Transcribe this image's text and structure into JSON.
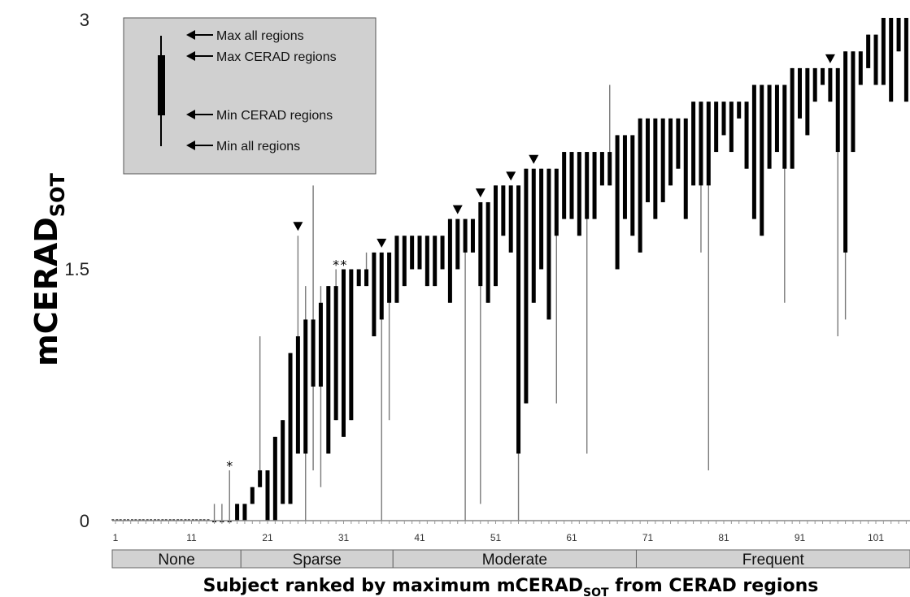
{
  "chart_data": {
    "type": "range-bar",
    "ylabel": "mCERAD",
    "ylabel_sub": "SOT",
    "xlabel": "Subject ranked by maximum mCERAD",
    "xlabel_sub": "SOT",
    "xlabel_tail": " from CERAD regions",
    "y_ticks": [
      "0",
      "1.5",
      "3"
    ],
    "ylim": [
      0,
      3
    ],
    "x_ticks": [
      "1",
      "11",
      "21",
      "31",
      "41",
      "51",
      "61",
      "71",
      "81",
      "91",
      "101"
    ],
    "xlim": [
      1,
      108
    ],
    "legend": {
      "max_all": "Max all regions",
      "max_cerad": "Max CERAD regions",
      "min_cerad": "Min CERAD regions",
      "min_all": "Min all regions"
    },
    "categories": [
      {
        "label": "None",
        "start": 1,
        "end": 17
      },
      {
        "label": "Sparse",
        "start": 18,
        "end": 37
      },
      {
        "label": "Moderate",
        "start": 38,
        "end": 69
      },
      {
        "label": "Frequent",
        "start": 70,
        "end": 108
      }
    ],
    "triangle_subjects": [
      25,
      36,
      46,
      49,
      53,
      56,
      95
    ],
    "star_subjects": [
      16,
      30,
      31
    ],
    "subjects": [
      [
        0,
        0,
        0,
        0
      ],
      [
        0,
        0,
        0,
        0
      ],
      [
        0,
        0,
        0,
        0
      ],
      [
        0,
        0,
        0,
        0
      ],
      [
        0,
        0,
        0,
        0
      ],
      [
        0,
        0,
        0,
        0
      ],
      [
        0,
        0,
        0,
        0
      ],
      [
        0,
        0,
        0,
        0
      ],
      [
        0,
        0,
        0,
        0
      ],
      [
        0,
        0,
        0,
        0
      ],
      [
        0,
        0,
        0,
        0
      ],
      [
        0,
        0,
        0,
        0
      ],
      [
        0,
        0,
        0,
        0
      ],
      [
        0,
        0,
        0,
        0.1
      ],
      [
        0,
        0,
        0,
        0.1
      ],
      [
        0,
        0,
        0,
        0.3
      ],
      [
        0,
        0,
        0.1,
        0.1
      ],
      [
        0,
        0,
        0.1,
        0.1
      ],
      [
        0.1,
        0.1,
        0.2,
        0.2
      ],
      [
        0.2,
        0.2,
        0.3,
        1.1
      ],
      [
        0,
        0,
        0.3,
        0.3
      ],
      [
        0,
        0,
        0.5,
        0.5
      ],
      [
        0.1,
        0.1,
        0.6,
        0.6
      ],
      [
        0.1,
        0.1,
        1.0,
        1.0
      ],
      [
        0.4,
        0.4,
        1.1,
        1.7
      ],
      [
        0,
        0.4,
        1.2,
        1.4
      ],
      [
        0.3,
        0.8,
        1.2,
        2.0
      ],
      [
        0.2,
        0.8,
        1.3,
        1.4
      ],
      [
        0.4,
        0.4,
        1.4,
        1.4
      ],
      [
        0.6,
        0.6,
        1.4,
        1.5
      ],
      [
        0.5,
        0.5,
        1.5,
        1.5
      ],
      [
        0.6,
        0.6,
        1.5,
        1.5
      ],
      [
        1.4,
        1.4,
        1.5,
        1.5
      ],
      [
        1.4,
        1.4,
        1.5,
        1.6
      ],
      [
        1.1,
        1.1,
        1.6,
        1.6
      ],
      [
        0,
        1.2,
        1.6,
        1.6
      ],
      [
        0.6,
        1.3,
        1.6,
        1.6
      ],
      [
        1.3,
        1.3,
        1.7,
        1.7
      ],
      [
        1.4,
        1.4,
        1.7,
        1.7
      ],
      [
        1.5,
        1.5,
        1.7,
        1.7
      ],
      [
        1.5,
        1.5,
        1.7,
        1.7
      ],
      [
        1.4,
        1.4,
        1.7,
        1.7
      ],
      [
        1.4,
        1.4,
        1.7,
        1.7
      ],
      [
        1.5,
        1.5,
        1.7,
        1.7
      ],
      [
        1.3,
        1.3,
        1.8,
        1.8
      ],
      [
        1.5,
        1.5,
        1.8,
        1.8
      ],
      [
        0,
        1.6,
        1.8,
        1.8
      ],
      [
        1.6,
        1.6,
        1.8,
        1.8
      ],
      [
        0.1,
        1.4,
        1.9,
        1.9
      ],
      [
        1.3,
        1.3,
        1.9,
        1.9
      ],
      [
        1.4,
        1.4,
        2.0,
        2.0
      ],
      [
        1.7,
        1.7,
        2.0,
        2.0
      ],
      [
        1.6,
        1.6,
        2.0,
        2.0
      ],
      [
        0,
        0.4,
        2.0,
        2.0
      ],
      [
        0.7,
        0.7,
        2.1,
        2.1
      ],
      [
        1.3,
        1.3,
        2.1,
        2.1
      ],
      [
        1.5,
        1.5,
        2.1,
        2.1
      ],
      [
        1.2,
        1.2,
        2.1,
        2.1
      ],
      [
        0.7,
        1.7,
        2.1,
        2.1
      ],
      [
        1.8,
        1.8,
        2.2,
        2.2
      ],
      [
        1.8,
        1.8,
        2.2,
        2.2
      ],
      [
        1.7,
        1.7,
        2.2,
        2.2
      ],
      [
        0.4,
        1.8,
        2.2,
        2.2
      ],
      [
        1.8,
        1.8,
        2.2,
        2.2
      ],
      [
        2.0,
        2.0,
        2.2,
        2.2
      ],
      [
        2.0,
        2.0,
        2.2,
        2.6
      ],
      [
        1.5,
        1.5,
        2.3,
        2.3
      ],
      [
        1.8,
        1.8,
        2.3,
        2.3
      ],
      [
        1.7,
        1.7,
        2.3,
        2.3
      ],
      [
        1.6,
        1.6,
        2.4,
        2.4
      ],
      [
        1.9,
        1.9,
        2.4,
        2.4
      ],
      [
        1.8,
        1.8,
        2.4,
        2.4
      ],
      [
        1.9,
        1.9,
        2.4,
        2.4
      ],
      [
        2.0,
        2.0,
        2.4,
        2.4
      ],
      [
        2.1,
        2.1,
        2.4,
        2.4
      ],
      [
        1.8,
        1.8,
        2.4,
        2.4
      ],
      [
        2.0,
        2.0,
        2.5,
        2.5
      ],
      [
        1.6,
        2.0,
        2.5,
        2.5
      ],
      [
        0.3,
        2.0,
        2.5,
        2.5
      ],
      [
        2.2,
        2.2,
        2.5,
        2.5
      ],
      [
        2.3,
        2.3,
        2.5,
        2.5
      ],
      [
        2.2,
        2.2,
        2.5,
        2.5
      ],
      [
        2.4,
        2.4,
        2.5,
        2.5
      ],
      [
        2.1,
        2.1,
        2.5,
        2.5
      ],
      [
        1.8,
        1.8,
        2.6,
        2.6
      ],
      [
        1.7,
        1.7,
        2.6,
        2.6
      ],
      [
        2.1,
        2.1,
        2.6,
        2.6
      ],
      [
        2.2,
        2.2,
        2.6,
        2.6
      ],
      [
        1.3,
        2.1,
        2.6,
        2.6
      ],
      [
        2.1,
        2.1,
        2.7,
        2.7
      ],
      [
        2.4,
        2.4,
        2.7,
        2.7
      ],
      [
        2.3,
        2.3,
        2.7,
        2.7
      ],
      [
        2.5,
        2.5,
        2.7,
        2.7
      ],
      [
        2.6,
        2.6,
        2.7,
        2.7
      ],
      [
        2.5,
        2.5,
        2.7,
        2.7
      ],
      [
        1.1,
        2.2,
        2.7,
        2.7
      ],
      [
        1.2,
        1.6,
        2.8,
        2.8
      ],
      [
        2.2,
        2.2,
        2.8,
        2.8
      ],
      [
        2.6,
        2.6,
        2.8,
        2.8
      ],
      [
        2.7,
        2.7,
        2.9,
        2.9
      ],
      [
        2.6,
        2.6,
        2.9,
        2.9
      ],
      [
        2.6,
        2.6,
        3.0,
        3.0
      ],
      [
        2.5,
        2.5,
        3.0,
        3.0
      ],
      [
        2.8,
        2.8,
        3.0,
        3.0
      ],
      [
        2.5,
        2.5,
        3.0,
        3.0
      ]
    ]
  }
}
